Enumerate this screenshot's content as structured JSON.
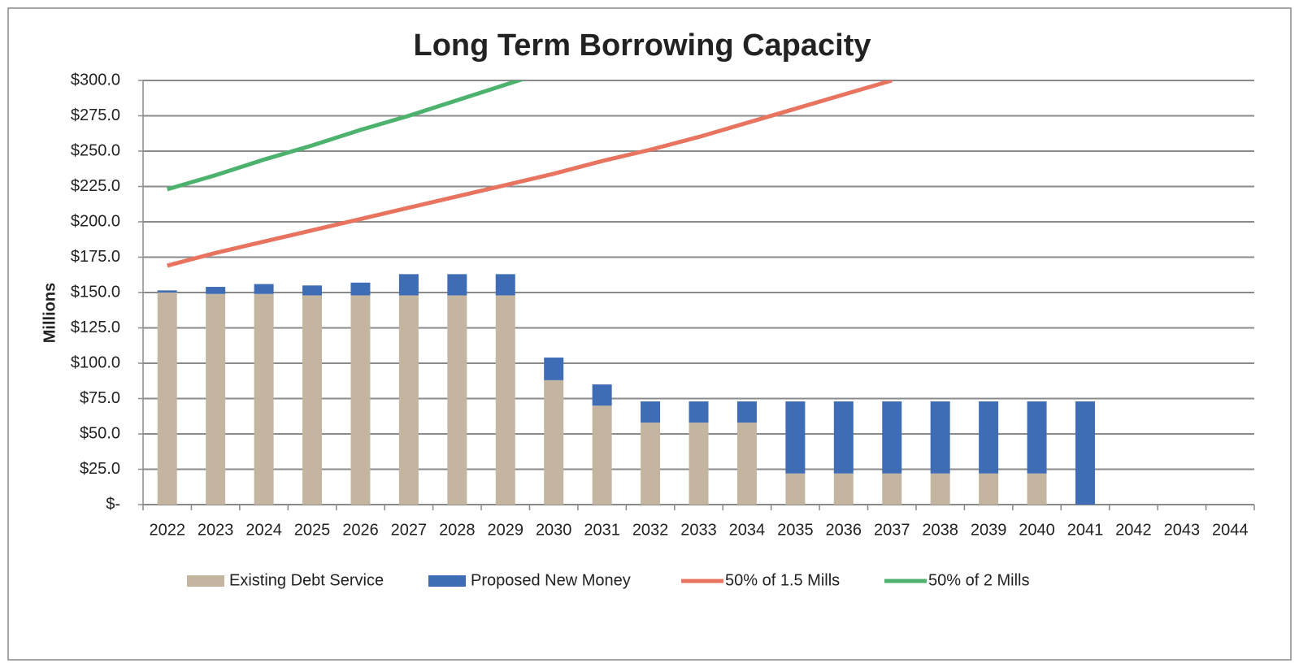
{
  "chart_data": {
    "type": "bar",
    "stacked": true,
    "title": "Long Term Borrowing Capacity",
    "y_label": "Millions",
    "categories": [
      "2022",
      "2023",
      "2024",
      "2025",
      "2026",
      "2027",
      "2028",
      "2029",
      "2030",
      "2031",
      "2032",
      "2033",
      "2034",
      "2035",
      "2036",
      "2037",
      "2038",
      "2039",
      "2040",
      "2041",
      "2042",
      "2043",
      "2044"
    ],
    "series": [
      {
        "name": "Existing Debt Service",
        "type": "bar",
        "color": "#c4b5a0",
        "values": [
          150,
          149,
          149,
          148,
          148,
          148,
          148,
          148,
          88,
          70,
          58,
          58,
          58,
          22,
          22,
          22,
          22,
          22,
          22,
          0,
          null,
          null,
          null
        ]
      },
      {
        "name": "Proposed New Money",
        "type": "bar",
        "color": "#3f6db5",
        "values": [
          1.5,
          5,
          7,
          7,
          9,
          15,
          15,
          15,
          16,
          15,
          15,
          15,
          15,
          51,
          51,
          51,
          51,
          51,
          51,
          73,
          null,
          null,
          null
        ]
      },
      {
        "name": "50% of 1.5 Mills",
        "type": "line",
        "color": "#e8735f",
        "values": [
          169,
          178,
          186,
          194,
          202,
          210,
          218,
          226,
          234,
          243,
          251,
          260,
          270,
          280,
          290,
          300,
          null,
          null,
          null,
          null,
          null,
          null,
          null
        ]
      },
      {
        "name": "50% of 2 Mills",
        "type": "line",
        "color": "#4db26e",
        "values": [
          223,
          233,
          244,
          254,
          265,
          275,
          286,
          297,
          308,
          null,
          null,
          null,
          null,
          null,
          null,
          null,
          null,
          null,
          null,
          null,
          null,
          null,
          null
        ]
      }
    ],
    "ylim": [
      0,
      300
    ],
    "yticks": [
      {
        "value": 0,
        "label": "$-"
      },
      {
        "value": 25,
        "label": "$25.0"
      },
      {
        "value": 50,
        "label": "$50.0"
      },
      {
        "value": 75,
        "label": "$75.0"
      },
      {
        "value": 100,
        "label": "$100.0"
      },
      {
        "value": 125,
        "label": "$125.0"
      },
      {
        "value": 150,
        "label": "$150.0"
      },
      {
        "value": 175,
        "label": "$175.0"
      },
      {
        "value": 200,
        "label": "$200.0"
      },
      {
        "value": 225,
        "label": "$225.0"
      },
      {
        "value": 250,
        "label": "$250.0"
      },
      {
        "value": 275,
        "label": "$275.0"
      },
      {
        "value": 300,
        "label": "$300.0"
      }
    ],
    "grid": true,
    "legend": "bottom"
  }
}
